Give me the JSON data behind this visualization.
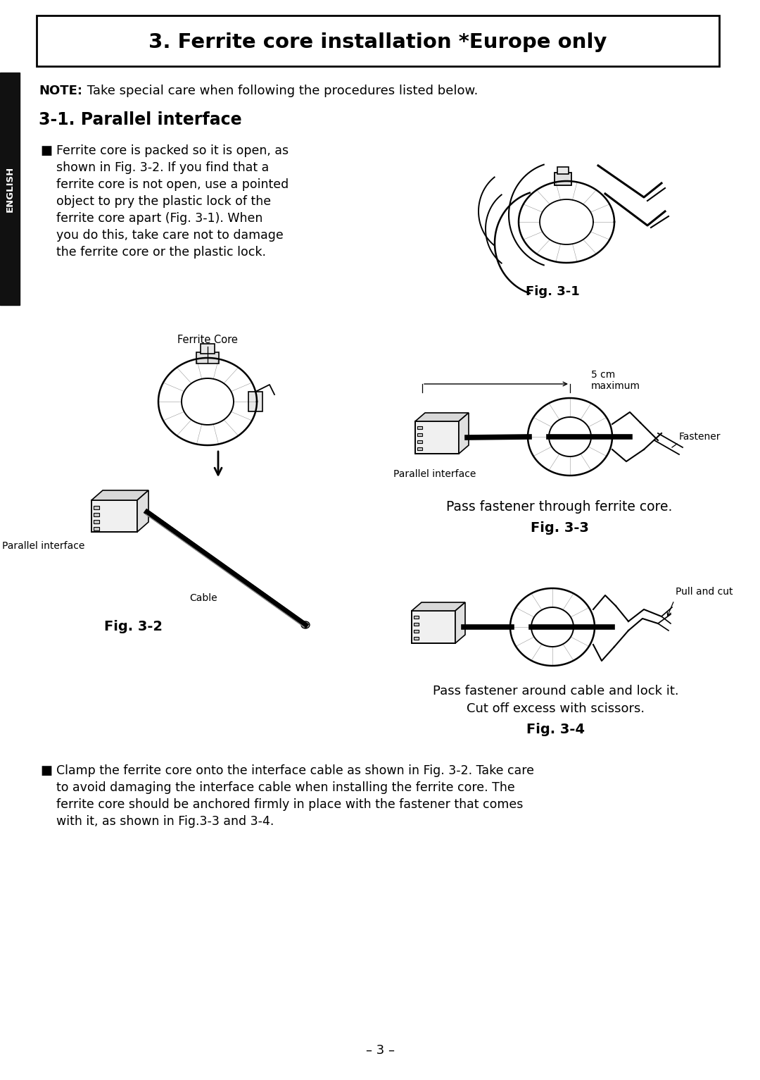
{
  "page_bg": "#ffffff",
  "sidebar_bg": "#111111",
  "sidebar_text": "ENGLISH",
  "sidebar_text_color": "#ffffff",
  "title_text": "3. Ferrite core installation *Europe only",
  "note_bold": "NOTE:",
  "note_text": " Take special care when following the procedures listed below.",
  "section_title": "3-1. Parallel interface",
  "bullet1_lines": [
    "Ferrite core is packed so it is open, as",
    "shown in Fig. 3-2. If you find that a",
    "ferrite core is not open, use a pointed",
    "object to pry the plastic lock of the",
    "ferrite core apart (Fig. 3-1). When",
    "you do this, take care not to damage",
    "the ferrite core or the plastic lock."
  ],
  "bullet2_lines": [
    "Clamp the ferrite core onto the interface cable as shown in Fig. 3-2. Take care",
    "to avoid damaging the interface cable when installing the ferrite core. The",
    "ferrite core should be anchored firmly in place with the fastener that comes",
    "with it, as shown in Fig.3-3 and 3-4."
  ],
  "fig1_caption": "Fig. 3-1",
  "fig2_label_fc": "Ferrite Core",
  "fig2_label_pi": "Parallel interface",
  "fig2_label_cable": "Cable",
  "fig2_caption": "Fig. 3-2",
  "fig3_label_5cm": "5 cm\nmaximum",
  "fig3_label_fastener": "Fastener",
  "fig3_label_pi": "Parallel interface",
  "fig3_text": "Pass fastener through ferrite core.",
  "fig3_caption": "Fig. 3-3",
  "fig4_label_pullcut": "Pull and cut",
  "fig4_text1": "Pass fastener around cable and lock it.",
  "fig4_text2": "Cut off excess with scissors.",
  "fig4_caption": "Fig. 3-4",
  "page_num": "– 3 –"
}
